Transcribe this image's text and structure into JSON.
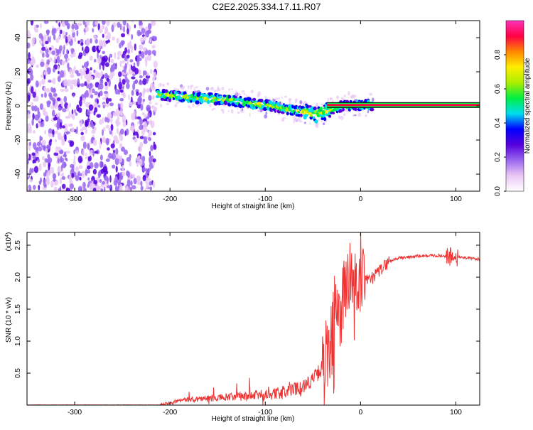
{
  "title": "C2E2.2025.334.17.11.R07",
  "chart_data": [
    {
      "type": "heatmap",
      "name": "spectrogram",
      "xlabel": "Height of straight line (km)",
      "ylabel": "Frequency (Hz)",
      "xlim": [
        -350,
        125
      ],
      "ylim": [
        -50,
        50
      ],
      "xticks": [
        -300,
        -200,
        -100,
        0,
        100
      ],
      "yticks": [
        -40,
        -20,
        0,
        20,
        40
      ],
      "colorbar": {
        "label": "Normalized spectral amplitude",
        "range": [
          0.0,
          1.0
        ],
        "ticks": [
          0.0,
          0.2,
          0.4,
          0.6,
          0.8
        ],
        "colormap": [
          "#ffffff",
          "#e9c8f5",
          "#9966ee",
          "#5500dd",
          "#0000ff",
          "#00ddee",
          "#00ee44",
          "#aaee00",
          "#ffee00",
          "#ff8800",
          "#ff0044",
          "#ff33bb"
        ]
      },
      "noise_region_km": [
        -350,
        -215
      ],
      "signal_ridge": {
        "x": [
          -215,
          -200,
          -180,
          -160,
          -140,
          -120,
          -100,
          -80,
          -60,
          -45,
          -35,
          -25,
          -15,
          0,
          125
        ],
        "y": [
          7,
          6,
          5,
          4.5,
          3.5,
          2,
          0.5,
          -1.5,
          -3.5,
          -5,
          -3,
          -1,
          0.5,
          0.5,
          0.5
        ]
      }
    },
    {
      "type": "line",
      "name": "snr",
      "xlabel": "Height of straight line (km)",
      "ylabel": "SNR (10 * v/v)",
      "multiplier": "(x10",
      "multiplier_exp": "4",
      "xlim": [
        -350,
        125
      ],
      "ylim": [
        0,
        2.7
      ],
      "xticks": [
        -300,
        -200,
        -100,
        0,
        100
      ],
      "yticks": [
        0.5,
        1.0,
        1.5,
        2.0,
        2.5
      ],
      "color": "#ee3333",
      "series": [
        {
          "name": "SNR",
          "x": [
            -350,
            -250,
            -210,
            -200,
            -190,
            -170,
            -150,
            -130,
            -110,
            -100,
            -90,
            -80,
            -70,
            -60,
            -50,
            -45,
            -40,
            -35,
            -30,
            -25,
            -20,
            -15,
            -10,
            -5,
            0,
            10,
            20,
            30,
            40,
            60,
            80,
            100,
            125
          ],
          "y": [
            0.0,
            0.0,
            0.0,
            0.03,
            0.06,
            0.08,
            0.09,
            0.1,
            0.12,
            0.13,
            0.14,
            0.17,
            0.2,
            0.26,
            0.35,
            0.45,
            0.55,
            0.75,
            1.05,
            1.35,
            1.6,
            1.8,
            1.85,
            1.85,
            1.9,
            1.95,
            2.1,
            2.25,
            2.3,
            2.33,
            2.34,
            2.32,
            2.28
          ]
        }
      ]
    }
  ]
}
